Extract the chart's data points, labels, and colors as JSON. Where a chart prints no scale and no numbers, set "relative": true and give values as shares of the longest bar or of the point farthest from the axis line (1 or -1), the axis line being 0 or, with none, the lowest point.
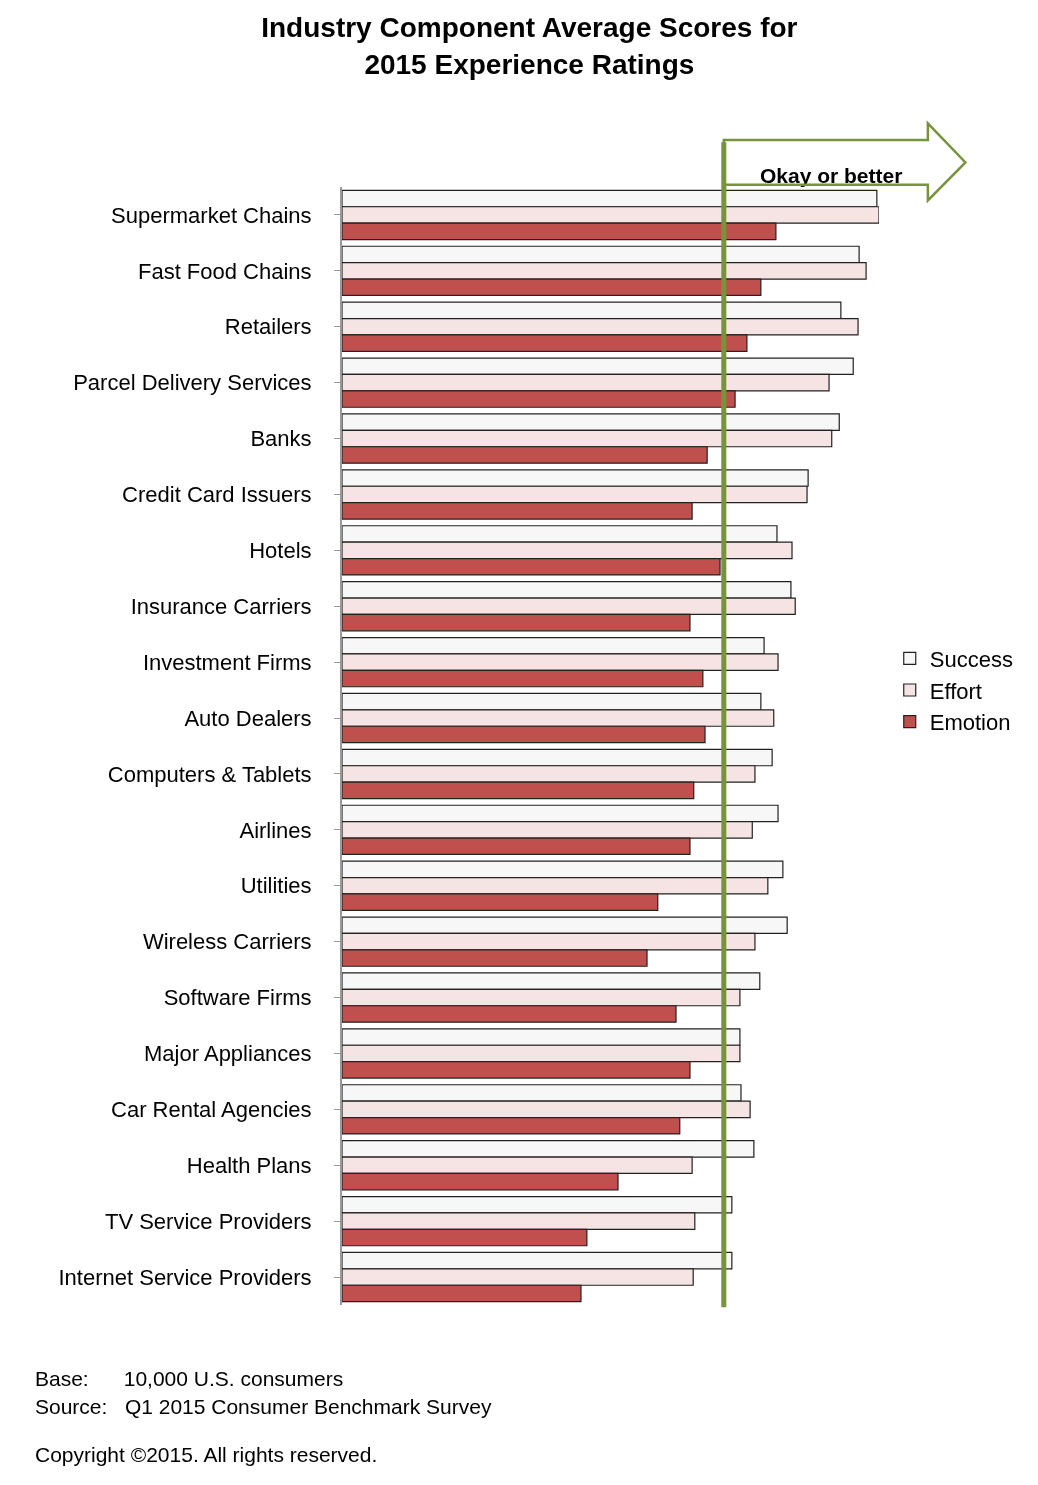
{
  "chart_data": {
    "type": "bar",
    "orientation": "horizontal",
    "relative": true,
    "title": "Industry Component Average Scores for\n2015 Experience Ratings",
    "categories": [
      "Supermarket Chains",
      "Fast Food Chains",
      "Retailers",
      "Parcel Delivery Services",
      "Banks",
      "Credit Card Issuers",
      "Hotels",
      "Insurance Carriers",
      "Investment Firms",
      "Auto Dealers",
      "Computers & Tablets",
      "Airlines",
      "Utilities",
      "Wireless Carriers",
      "Software Firms",
      "Major Appliances",
      "Car Rental Agencies",
      "Health Plans",
      "TV Service Providers",
      "Internet Service Providers"
    ],
    "series": [
      {
        "name": "Success",
        "color": "#f7f7f7",
        "values": [
          0.996,
          0.963,
          0.929,
          0.952,
          0.926,
          0.868,
          0.81,
          0.836,
          0.786,
          0.78,
          0.801,
          0.812,
          0.821,
          0.829,
          0.778,
          0.741,
          0.743,
          0.767,
          0.726,
          0.726
        ]
      },
      {
        "name": "Effort",
        "color": "#f6e4e4",
        "values": [
          1,
          0.976,
          0.961,
          0.907,
          0.912,
          0.866,
          0.838,
          0.844,
          0.812,
          0.804,
          0.769,
          0.764,
          0.793,
          0.769,
          0.741,
          0.741,
          0.76,
          0.652,
          0.657,
          0.654
        ]
      },
      {
        "name": "Emotion",
        "color": "#c0504d",
        "values": [
          0.808,
          0.78,
          0.754,
          0.732,
          0.68,
          0.652,
          0.704,
          0.648,
          0.672,
          0.676,
          0.655,
          0.648,
          0.588,
          0.568,
          0.622,
          0.648,
          0.629,
          0.514,
          0.456,
          0.445
        ]
      }
    ],
    "ref_lines": [
      {
        "axis": "x",
        "value": 0.711,
        "label": "Okay or better",
        "color": "#77933c"
      }
    ],
    "legend": "right",
    "grid": false,
    "annotations": [
      "Base:      10,000 U.S. consumers",
      "Source:   Q1 2015 Consumer Benchmark Survey",
      "Copyright ©2015. All rights reserved."
    ]
  }
}
